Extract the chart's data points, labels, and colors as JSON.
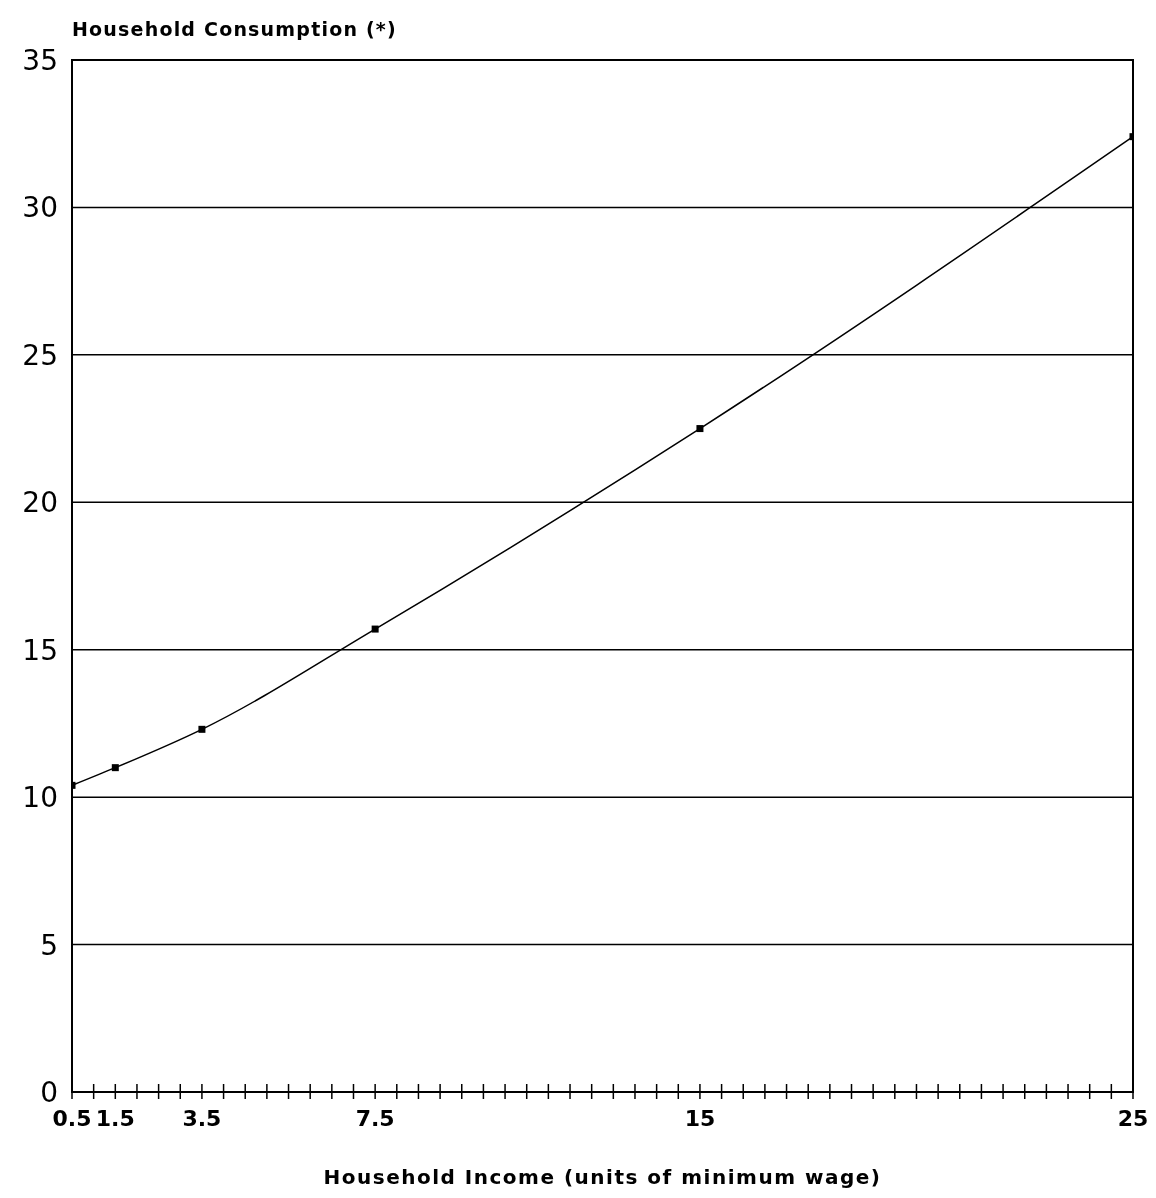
{
  "chart_data": {
    "type": "line",
    "ylabel": "Household Consumption (*)",
    "xlabel": "Household Income (units of minimum wage)",
    "x": [
      0.5,
      1.5,
      3.5,
      7.5,
      15,
      25
    ],
    "series": [
      {
        "color": "#000000",
        "values": [
          10.4,
          11.0,
          12.3,
          15.7,
          22.5,
          32.4
        ]
      }
    ],
    "xlim": [
      0.5,
      25
    ],
    "xticks": [
      0.5,
      {
        "value": 1,
        "label": null
      },
      1.5,
      {
        "value": 2,
        "label": null
      },
      {
        "value": 2.5,
        "label": null
      },
      {
        "value": 3,
        "label": null
      },
      3.5,
      {
        "value": 4,
        "label": null
      },
      {
        "value": 4.5,
        "label": null
      },
      {
        "value": 5,
        "label": null
      },
      {
        "value": 5.5,
        "label": null
      },
      {
        "value": 6,
        "label": null
      },
      {
        "value": 6.5,
        "label": null
      },
      {
        "value": 7,
        "label": null
      },
      7.5,
      {
        "value": 8,
        "label": null
      },
      {
        "value": 8.5,
        "label": null
      },
      {
        "value": 9,
        "label": null
      },
      {
        "value": 9.5,
        "label": null
      },
      {
        "value": 10,
        "label": null
      },
      {
        "value": 10.5,
        "label": null
      },
      {
        "value": 11,
        "label": null
      },
      {
        "value": 11.5,
        "label": null
      },
      {
        "value": 12,
        "label": null
      },
      {
        "value": 12.5,
        "label": null
      },
      {
        "value": 13,
        "label": null
      },
      {
        "value": 13.5,
        "label": null
      },
      {
        "value": 14,
        "label": null
      },
      {
        "value": 14.5,
        "label": null
      },
      15,
      {
        "value": 15.5,
        "label": null
      },
      {
        "value": 16,
        "label": null
      },
      {
        "value": 16.5,
        "label": null
      },
      {
        "value": 17,
        "label": null
      },
      {
        "value": 17.5,
        "label": null
      },
      {
        "value": 18,
        "label": null
      },
      {
        "value": 18.5,
        "label": null
      },
      {
        "value": 19,
        "label": null
      },
      {
        "value": 19.5,
        "label": null
      },
      {
        "value": 20,
        "label": null
      },
      {
        "value": 20.5,
        "label": null
      },
      {
        "value": 21,
        "label": null
      },
      {
        "value": 21.5,
        "label": null
      },
      {
        "value": 22,
        "label": null
      },
      {
        "value": 22.5,
        "label": null
      },
      {
        "value": 23,
        "label": null
      },
      {
        "value": 23.5,
        "label": null
      },
      {
        "value": 24,
        "label": null
      },
      {
        "value": 24.5,
        "label": null
      },
      25
    ],
    "ylim": [
      0,
      35
    ],
    "yticks": [
      0,
      5,
      10,
      15,
      20,
      25,
      30,
      35
    ],
    "grid": "y",
    "marker": "square",
    "line_style": "solid"
  }
}
